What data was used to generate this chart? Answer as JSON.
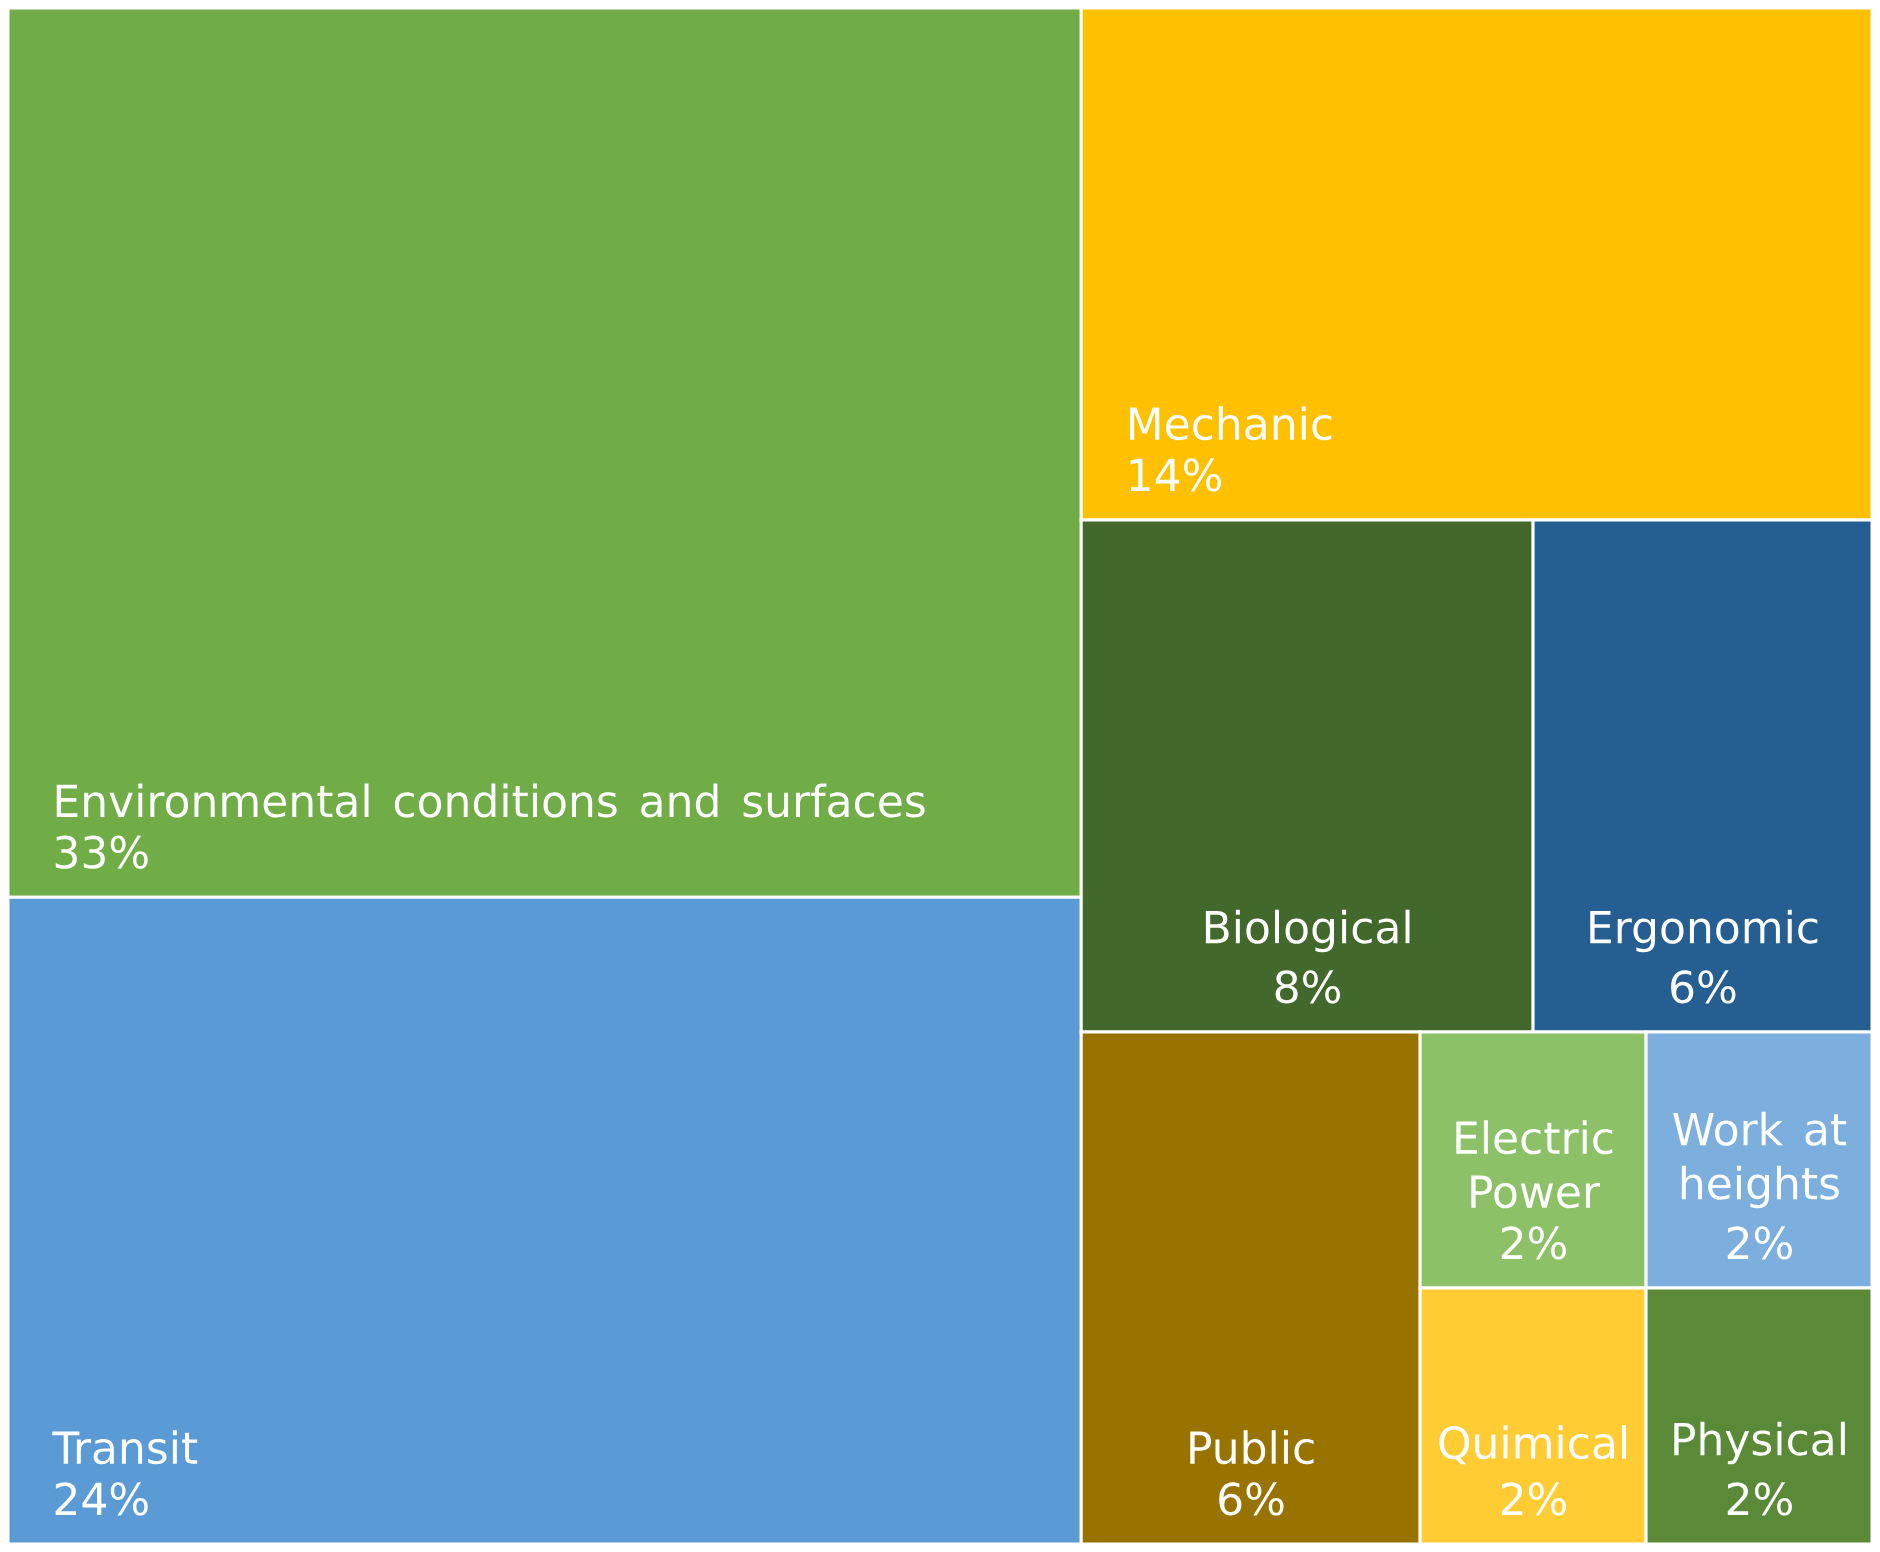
{
  "chart_data": {
    "type": "other",
    "categories": [
      "Environmental conditions and surfaces",
      "Transit",
      "Mechanic",
      "Biological",
      "Ergonomic",
      "Public",
      "Electric Power",
      "Work at heights",
      "Quimical",
      "Physical"
    ],
    "values": [
      33,
      24,
      14,
      8,
      6,
      6,
      2,
      2,
      2,
      2
    ],
    "value_labels": [
      "33%",
      "24%",
      "14%",
      "8%",
      "6%",
      "6%",
      "2%",
      "2%",
      "2%",
      "2%"
    ],
    "colors": [
      "#70ad47",
      "#5b9bd5",
      "#ffc000",
      "#43682b",
      "#255e91",
      "#997300",
      "#8cc168",
      "#7cafdd",
      "#ffcd33",
      "#5a8a38"
    ]
  }
}
